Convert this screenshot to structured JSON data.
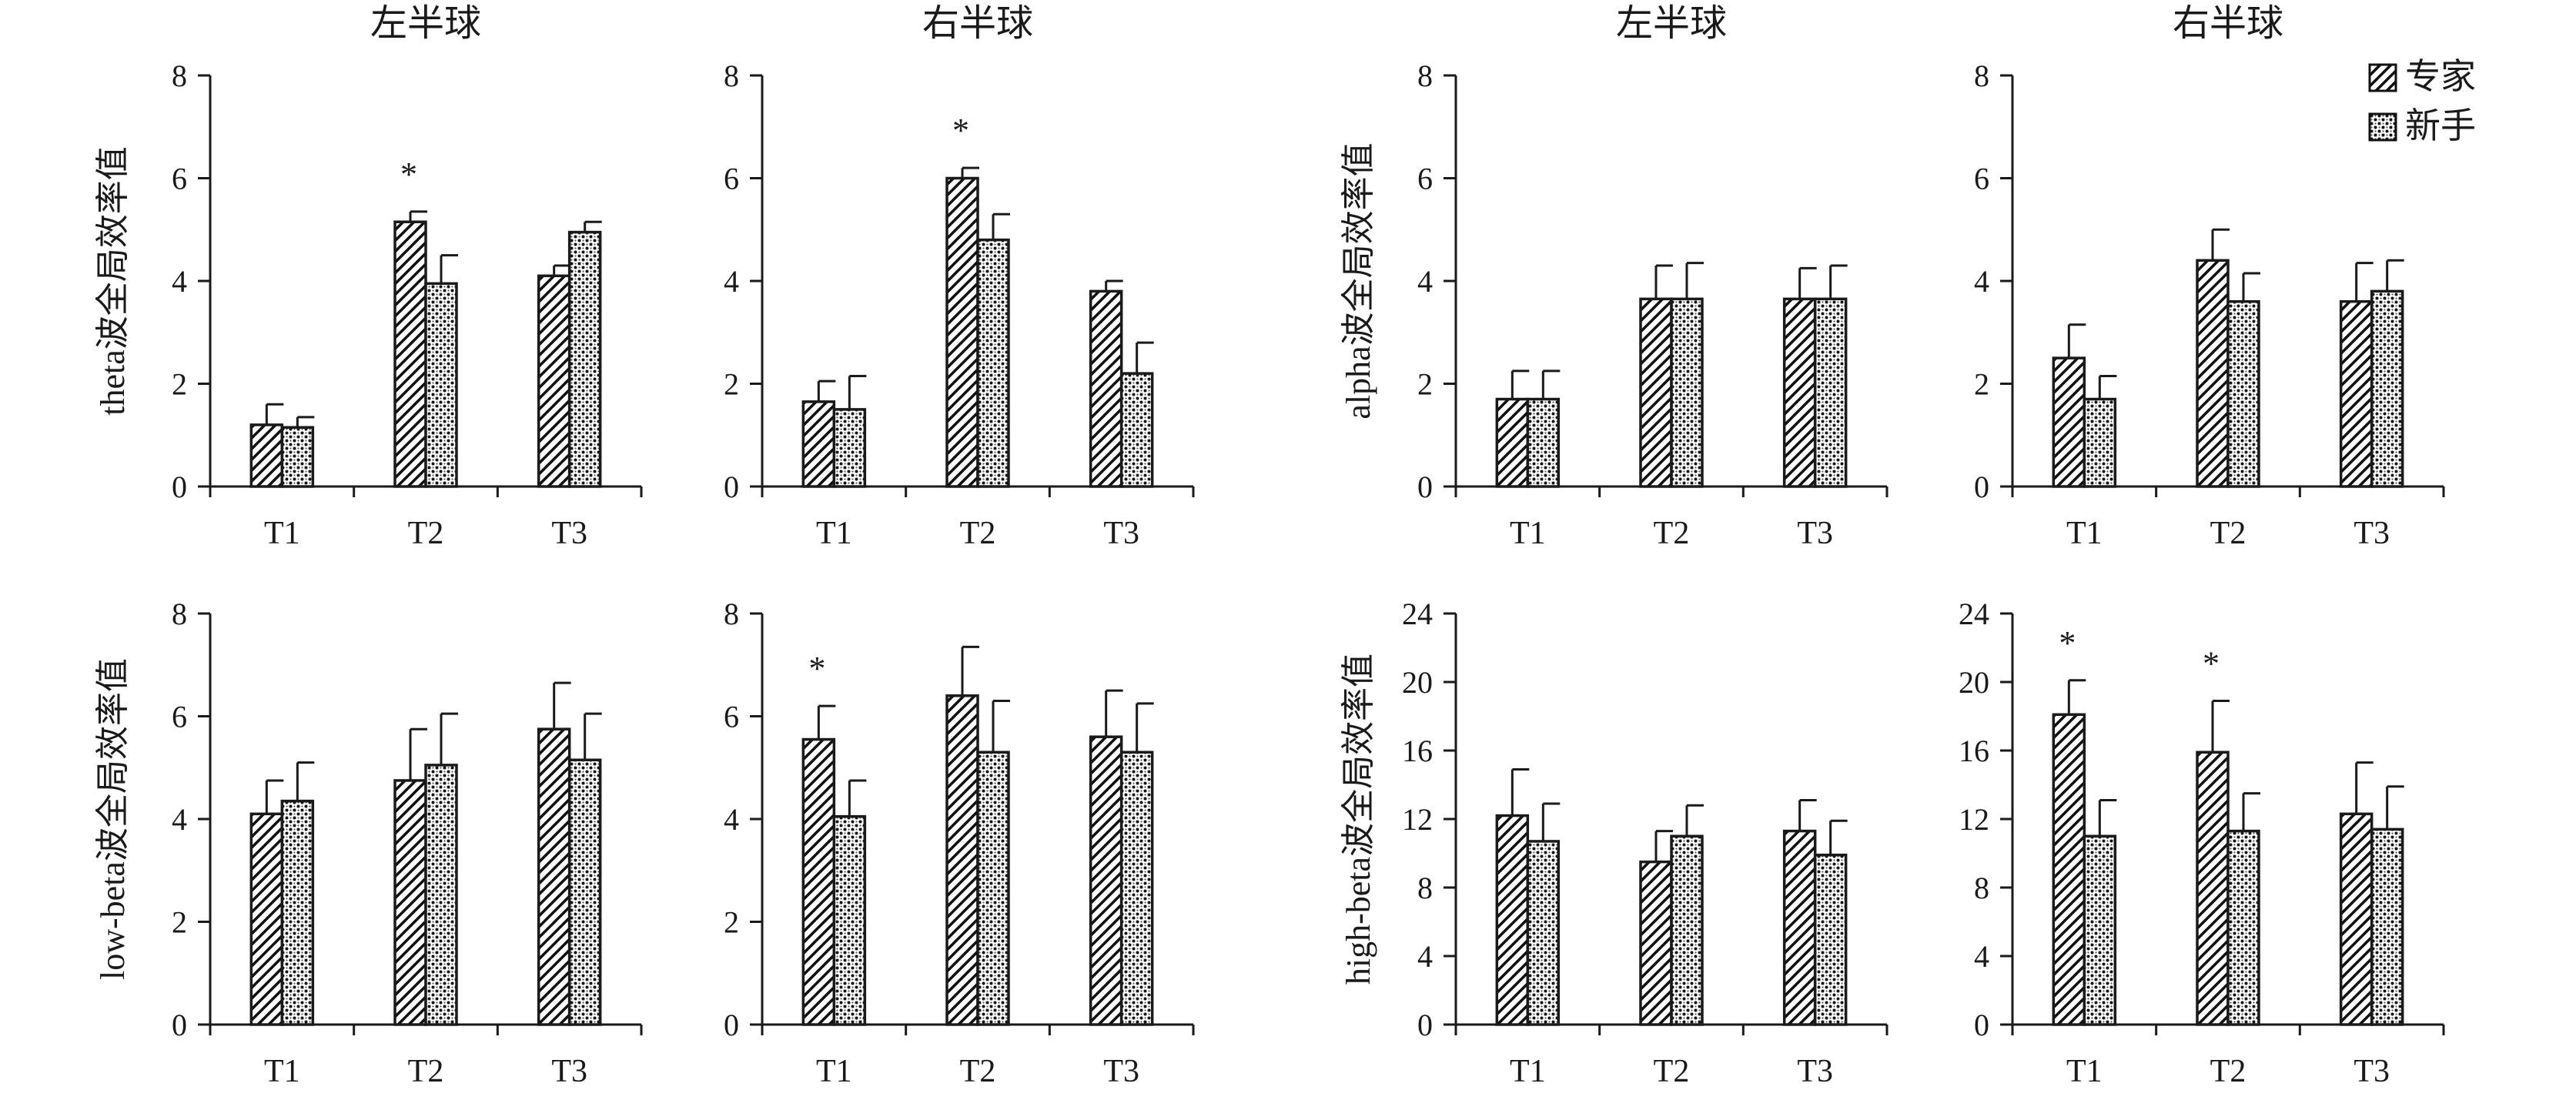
{
  "legend": {
    "position": "top-right",
    "items": [
      {
        "name": "专家",
        "pattern": "hatch"
      },
      {
        "name": "新手",
        "pattern": "dots"
      }
    ]
  },
  "chart_data": [
    {
      "type": "bar",
      "title": "左半球",
      "ylabel": "theta波全局效率值",
      "categories": [
        "T1",
        "T2",
        "T3"
      ],
      "ylim": [
        0,
        8
      ],
      "yticks": [
        0,
        2,
        4,
        6,
        8
      ],
      "series": [
        {
          "name": "专家",
          "values": [
            1.2,
            5.15,
            4.1
          ],
          "errors": [
            0.4,
            0.2,
            0.2
          ]
        },
        {
          "name": "新手",
          "values": [
            1.15,
            3.95,
            4.95
          ],
          "errors": [
            0.2,
            0.55,
            0.2
          ]
        }
      ],
      "annotations": [
        {
          "category": "T2",
          "text": "*"
        }
      ]
    },
    {
      "type": "bar",
      "title": "右半球",
      "ylabel": "",
      "categories": [
        "T1",
        "T2",
        "T3"
      ],
      "ylim": [
        0,
        8
      ],
      "yticks": [
        0,
        2,
        4,
        6,
        8
      ],
      "series": [
        {
          "name": "专家",
          "values": [
            1.65,
            6.0,
            3.8
          ],
          "errors": [
            0.4,
            0.2,
            0.2
          ]
        },
        {
          "name": "新手",
          "values": [
            1.5,
            4.8,
            2.2
          ],
          "errors": [
            0.65,
            0.5,
            0.6
          ]
        }
      ],
      "annotations": [
        {
          "category": "T2",
          "text": "*"
        }
      ]
    },
    {
      "type": "bar",
      "title": "左半球",
      "ylabel": "alpha波全局效率值",
      "categories": [
        "T1",
        "T2",
        "T3"
      ],
      "ylim": [
        0,
        8
      ],
      "yticks": [
        0,
        2,
        4,
        6,
        8
      ],
      "series": [
        {
          "name": "专家",
          "values": [
            1.7,
            3.65,
            3.65
          ],
          "errors": [
            0.55,
            0.65,
            0.6
          ]
        },
        {
          "name": "新手",
          "values": [
            1.7,
            3.65,
            3.65
          ],
          "errors": [
            0.55,
            0.7,
            0.65
          ]
        }
      ],
      "annotations": []
    },
    {
      "type": "bar",
      "title": "右半球",
      "ylabel": "",
      "categories": [
        "T1",
        "T2",
        "T3"
      ],
      "ylim": [
        0,
        8
      ],
      "yticks": [
        0,
        2,
        4,
        6,
        8
      ],
      "series": [
        {
          "name": "专家",
          "values": [
            2.5,
            4.4,
            3.6
          ],
          "errors": [
            0.65,
            0.6,
            0.75
          ]
        },
        {
          "name": "新手",
          "values": [
            1.7,
            3.6,
            3.8
          ],
          "errors": [
            0.45,
            0.55,
            0.6
          ]
        }
      ],
      "annotations": []
    },
    {
      "type": "bar",
      "title": "",
      "ylabel": "low-beta波全局效率值",
      "categories": [
        "T1",
        "T2",
        "T3"
      ],
      "ylim": [
        0,
        8
      ],
      "yticks": [
        0,
        2,
        4,
        6,
        8
      ],
      "series": [
        {
          "name": "专家",
          "values": [
            4.1,
            4.75,
            5.75
          ],
          "errors": [
            0.65,
            1.0,
            0.9
          ]
        },
        {
          "name": "新手",
          "values": [
            4.35,
            5.05,
            5.15
          ],
          "errors": [
            0.75,
            1.0,
            0.9
          ]
        }
      ],
      "annotations": []
    },
    {
      "type": "bar",
      "title": "",
      "ylabel": "",
      "categories": [
        "T1",
        "T2",
        "T3"
      ],
      "ylim": [
        0,
        8
      ],
      "yticks": [
        0,
        2,
        4,
        6,
        8
      ],
      "series": [
        {
          "name": "专家",
          "values": [
            5.55,
            6.4,
            5.6
          ],
          "errors": [
            0.65,
            0.95,
            0.9
          ]
        },
        {
          "name": "新手",
          "values": [
            4.05,
            5.3,
            5.3
          ],
          "errors": [
            0.7,
            1.0,
            0.95
          ]
        }
      ],
      "annotations": [
        {
          "category": "T1",
          "text": "*"
        }
      ]
    },
    {
      "type": "bar",
      "title": "",
      "ylabel": "high-beta波全局效率值",
      "categories": [
        "T1",
        "T2",
        "T3"
      ],
      "ylim": [
        0,
        24
      ],
      "yticks": [
        0,
        4,
        8,
        12,
        16,
        20,
        24
      ],
      "series": [
        {
          "name": "专家",
          "values": [
            12.2,
            9.5,
            11.3
          ],
          "errors": [
            2.7,
            1.8,
            1.8
          ]
        },
        {
          "name": "新手",
          "values": [
            10.7,
            11.0,
            9.9
          ],
          "errors": [
            2.2,
            1.8,
            2.0
          ]
        }
      ],
      "annotations": []
    },
    {
      "type": "bar",
      "title": "",
      "ylabel": "",
      "categories": [
        "T1",
        "T2",
        "T3"
      ],
      "ylim": [
        0,
        24
      ],
      "yticks": [
        0,
        4,
        8,
        12,
        16,
        20,
        24
      ],
      "series": [
        {
          "name": "专家",
          "values": [
            18.1,
            15.9,
            12.3
          ],
          "errors": [
            2.0,
            3.0,
            3.0
          ]
        },
        {
          "name": "新手",
          "values": [
            11.0,
            11.3,
            11.4
          ],
          "errors": [
            2.1,
            2.2,
            2.5
          ]
        }
      ],
      "annotations": [
        {
          "category": "T1",
          "text": "*"
        },
        {
          "category": "T2",
          "text": "*"
        }
      ]
    }
  ]
}
